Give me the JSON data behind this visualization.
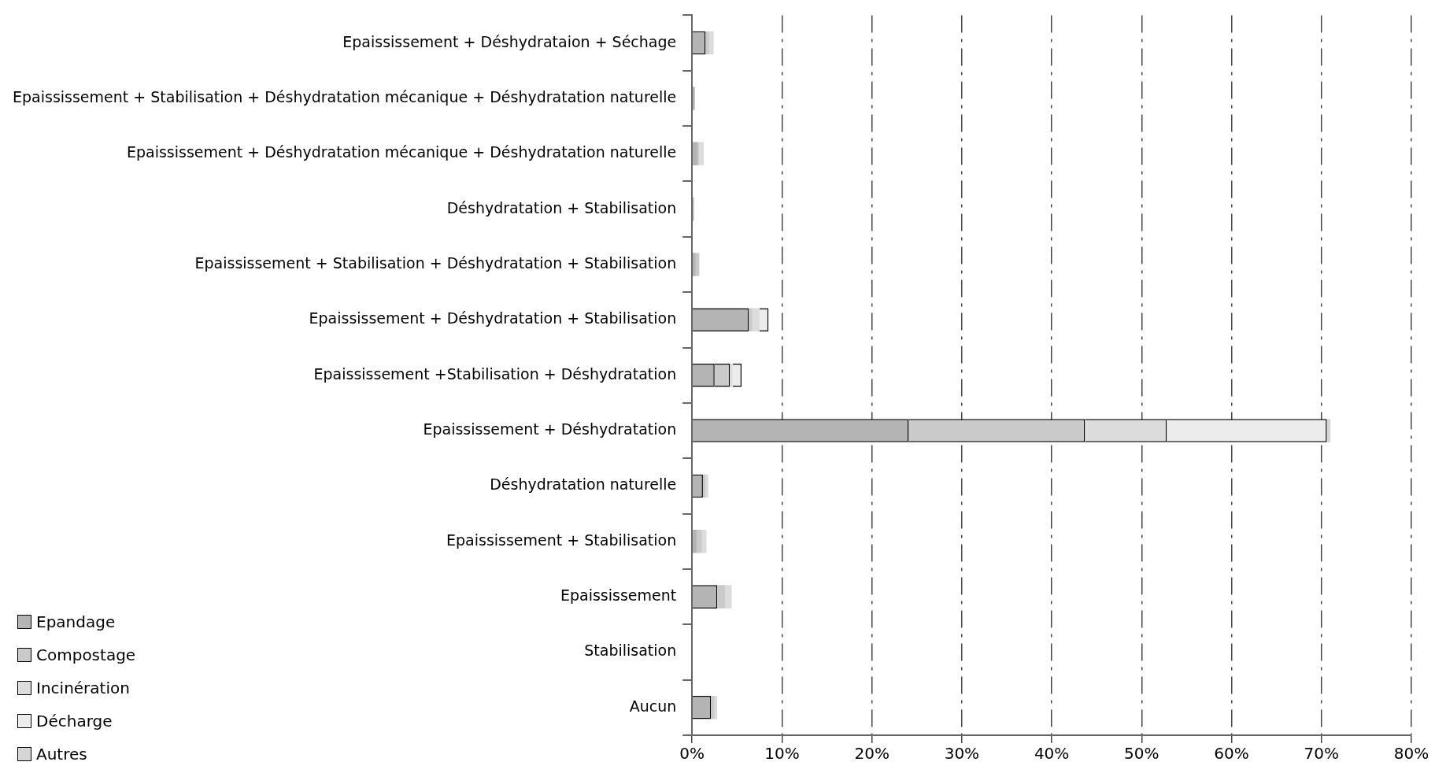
{
  "chart_data": {
    "type": "bar",
    "orientation": "horizontal",
    "stacked": true,
    "categories": [
      "Epaississement + Déshydrataion + Séchage",
      "Epaississement + Stabilisation + Déshydratation mécanique + Déshydratation naturelle",
      "Epaississement + Déshydratation mécanique + Déshydratation naturelle",
      "Déshydratation + Stabilisation",
      "Epaississement + Stabilisation + Déshydratation + Stabilisation",
      "Epaississement + Déshydratation + Stabilisation",
      "Epaississement +Stabilisation + Déshydratation",
      "Epaississement + Déshydratation",
      "Déshydratation naturelle",
      "Epaississement + Stabilisation",
      "Epaississement",
      "Stabilisation",
      "Aucun"
    ],
    "series": [
      {
        "name": "Epandage",
        "color": "#b4b4b4",
        "values": [
          1.5,
          0.3,
          0.6,
          0.2,
          0.4,
          6.3,
          2.5,
          24.1,
          1.2,
          0.5,
          2.8,
          0,
          2.1
        ]
      },
      {
        "name": "Compostage",
        "color": "#cacaca",
        "values": [
          0.4,
          null,
          0.2,
          0,
          0.4,
          0.4,
          1.7,
          19.6,
          0.3,
          0.6,
          0.9,
          0,
          0.4
        ]
      },
      {
        "name": "Incinération",
        "color": "#dcdcdc",
        "values": [
          0.5,
          0,
          0.5,
          0,
          0,
          0.8,
          0.3,
          9.1,
          0.3,
          0.5,
          0.7,
          0,
          0.3
        ]
      },
      {
        "name": "Décharge",
        "color": "#ececec",
        "values": [
          0,
          0,
          0,
          0,
          0,
          1.0,
          1.0,
          17.8,
          0,
          0,
          0,
          0,
          0
        ]
      },
      {
        "name": "Autres",
        "color": "#d6d6d6",
        "values": [
          0,
          0,
          0,
          0,
          0,
          0,
          0,
          0.4,
          0,
          0,
          0,
          0,
          0
        ]
      }
    ],
    "xlim": [
      0,
      80
    ],
    "xticks": [
      {
        "value": 0,
        "label": "0%"
      },
      {
        "value": 10,
        "label": "10%"
      },
      {
        "value": 20,
        "label": "20%"
      },
      {
        "value": 30,
        "label": "30%"
      },
      {
        "value": 40,
        "label": "40%"
      },
      {
        "value": 50,
        "label": "50%"
      },
      {
        "value": 60,
        "label": "60%"
      },
      {
        "value": 70,
        "label": "70%"
      },
      {
        "value": 80,
        "label": "80%"
      }
    ],
    "grid": "x",
    "legend": "bottom left"
  }
}
